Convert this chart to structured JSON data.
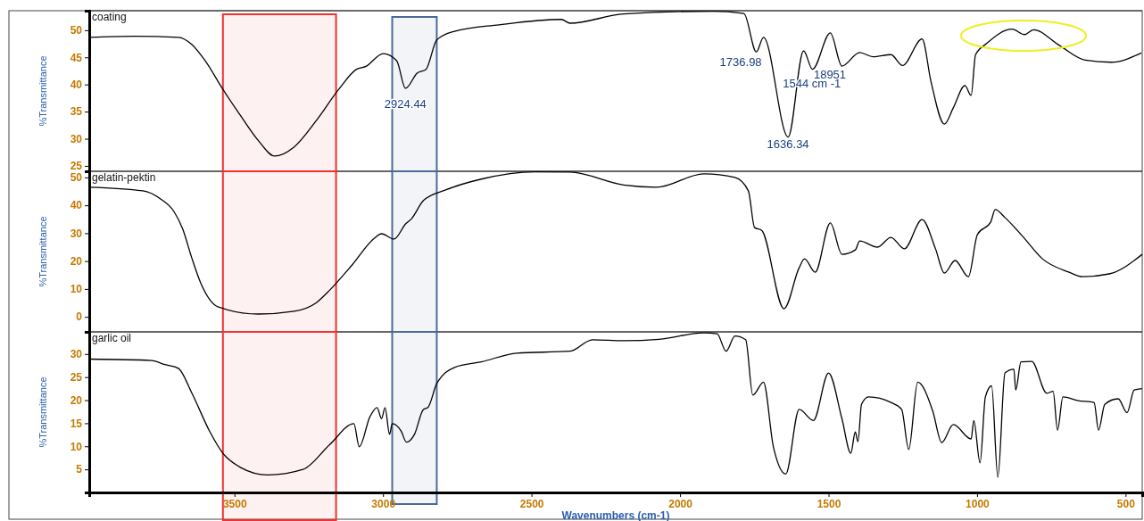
{
  "chart_data": [
    {
      "type": "line",
      "title": "coating",
      "ylabel": "%Transmittance",
      "tick_labels": "y",
      "bands": [
        {
          "axis": "x",
          "from": 3539,
          "to": 3158,
          "color": "#ee3333"
        },
        {
          "axis": "x",
          "from": 2969,
          "to": 2819,
          "color": "#4a6a9a"
        }
      ],
      "xlim": [
        3989,
        444
      ],
      "ylim": [
        24,
        53.6
      ],
      "yticks": [
        25,
        30,
        35,
        40,
        45,
        50
      ],
      "x": [
        3989,
        3839,
        3689,
        3644,
        3599,
        3539,
        3479,
        3419,
        3365,
        3299,
        3224,
        3149,
        3089,
        3059,
        2999,
        2954,
        2924,
        2885,
        2855,
        2819,
        2759,
        2609,
        2400,
        2370,
        2190,
        1890,
        1785,
        1743,
        1719,
        1636,
        1584,
        1554,
        1494,
        1455,
        1395,
        1350,
        1290,
        1251,
        1185,
        1155,
        1110,
        1080,
        1041,
        1020,
        1005,
        969,
        882,
        840,
        810,
        723,
        636,
        549,
        447
      ],
      "series": [
        {
          "color": "#000000",
          "values": [
            48.7,
            48.9,
            48.7,
            47.4,
            44.4,
            39.1,
            34.2,
            29.6,
            26.8,
            28.5,
            33.4,
            39.1,
            42.8,
            43.3,
            45.7,
            44.4,
            39.3,
            42.1,
            42.8,
            48.2,
            49.8,
            51,
            52,
            51.3,
            53,
            53.5,
            53.1,
            46,
            48.7,
            30.3,
            46.2,
            42.8,
            49.5,
            43.4,
            45.9,
            45.1,
            45.5,
            43.5,
            48.4,
            40.5,
            32.7,
            35.7,
            39.8,
            38,
            45.5,
            47.5,
            50.2,
            49.2,
            50.1,
            47.2,
            44.5,
            44.1,
            45.8
          ]
        }
      ],
      "annotations": [
        {
          "text": "2924.44",
          "x": 2924.44,
          "y": 39.3
        },
        {
          "text": "1736.98",
          "x": 1736.98,
          "y": 46
        },
        {
          "text": "1636.34",
          "x": 1636.34,
          "y": 30.3
        },
        {
          "text": "1544 cm -1",
          "x": 1544,
          "y": 42.8
        },
        "18951"
      ]
    },
    {
      "type": "line",
      "title": "gelatin-pektin",
      "ylabel": "%Transmittance",
      "tick_labels": "y",
      "bands": [
        {
          "axis": "x",
          "from": 3539,
          "to": 3158,
          "color": "#ee3333"
        },
        {
          "axis": "x",
          "from": 2969,
          "to": 2819,
          "color": "#4a6a9a"
        }
      ],
      "xlim": [
        3989,
        444
      ],
      "ylim": [
        -5.4,
        52.2
      ],
      "yticks": [
        0,
        10,
        20,
        30,
        40,
        50
      ],
      "x": [
        3989,
        3809,
        3749,
        3704,
        3674,
        3644,
        3614,
        3554,
        3419,
        3299,
        3224,
        3179,
        3104,
        3029,
        3005,
        2963,
        2924,
        2903,
        2864,
        2789,
        2669,
        2489,
        2370,
        2190,
        2079,
        1920,
        1815,
        1770,
        1749,
        1725,
        1650,
        1599,
        1581,
        1545,
        1494,
        1455,
        1410,
        1395,
        1335,
        1290,
        1245,
        1185,
        1140,
        1110,
        1074,
        1029,
        999,
        954,
        939,
        906,
        846,
        780,
        690,
        645,
        555,
        444
      ],
      "series": [
        {
          "color": "#000000",
          "values": [
            46.5,
            45.2,
            42.3,
            37.8,
            31.4,
            21.2,
            12.2,
            3.5,
            1,
            2,
            5.1,
            9.6,
            18.6,
            28.2,
            29.8,
            27.9,
            33.3,
            35.3,
            41.7,
            45.5,
            49.4,
            52,
            51.9,
            47.3,
            46.5,
            51.3,
            50,
            45.2,
            32,
            31,
            2.9,
            17.6,
            20.8,
            16,
            33.7,
            22.4,
            24,
            27.2,
            25,
            28.5,
            24.4,
            34.9,
            24.4,
            15.7,
            20.2,
            14.4,
            29.5,
            34,
            38.5,
            35.6,
            28.8,
            20.8,
            16,
            14.4,
            15.4,
            22.4
          ]
        }
      ]
    },
    {
      "type": "line",
      "title": "garlic oil",
      "ylabel": "%Transmittance",
      "xlabel": "Wavenumbers (cm-1)",
      "bands": [
        {
          "axis": "x",
          "from": 3539,
          "to": 3158,
          "color": "#ee3333"
        },
        {
          "axis": "x",
          "from": 2969,
          "to": 2819,
          "color": "#4a6a9a"
        }
      ],
      "xlim": [
        3989,
        444
      ],
      "ylim": [
        0,
        34.8
      ],
      "yticks": [
        5,
        10,
        15,
        20,
        25,
        30
      ],
      "xticks": [
        3500,
        3000,
        2500,
        2000,
        1500,
        1000,
        500
      ],
      "x": [
        3989,
        3779,
        3734,
        3689,
        3644,
        3584,
        3539,
        3479,
        3389,
        3269,
        3179,
        3098,
        3080,
        3044,
        3020,
        3005,
        2993,
        2978,
        2969,
        2939,
        2921,
        2894,
        2864,
        2849,
        2819,
        2759,
        2669,
        2549,
        2370,
        2295,
        2190,
        2070,
        1920,
        1875,
        1845,
        1815,
        1779,
        1755,
        1719,
        1686,
        1644,
        1599,
        1551,
        1500,
        1455,
        1425,
        1410,
        1401,
        1389,
        1365,
        1290,
        1254,
        1230,
        1200,
        1149,
        1119,
        1080,
        1020,
        1011,
        990,
        972,
        951,
        930,
        906,
        876,
        870,
        852,
        816,
        765,
        744,
        729,
        711,
        660,
        606,
        591,
        570,
        525,
        495,
        471,
        445
      ],
      "series": [
        {
          "color": "#000000",
          "values": [
            28.9,
            28.6,
            27.7,
            26.9,
            21.6,
            13.3,
            8.5,
            5.4,
            3.8,
            5,
            10.4,
            14.9,
            9.9,
            16.4,
            18.4,
            16,
            18.4,
            12.6,
            14.9,
            13.3,
            10.9,
            12.6,
            18,
            18.4,
            23.6,
            27.1,
            28.3,
            30.2,
            30.6,
            33.1,
            32.9,
            33.2,
            34.6,
            34.4,
            30.6,
            33.9,
            33.1,
            21.1,
            23.9,
            10,
            4,
            18,
            15.6,
            25.9,
            16,
            8.5,
            13.1,
            11,
            19.1,
            20.7,
            19.5,
            18,
            9.3,
            23.9,
            17.6,
            10.8,
            14.7,
            11.6,
            15.6,
            6.4,
            20.7,
            23.1,
            3.3,
            25.9,
            26.7,
            22.2,
            28.3,
            28.4,
            21.5,
            21.9,
            13.5,
            20.7,
            19.9,
            19.5,
            13.5,
            19.1,
            20.3,
            17.3,
            22.2,
            22.5
          ]
        }
      ]
    }
  ]
}
